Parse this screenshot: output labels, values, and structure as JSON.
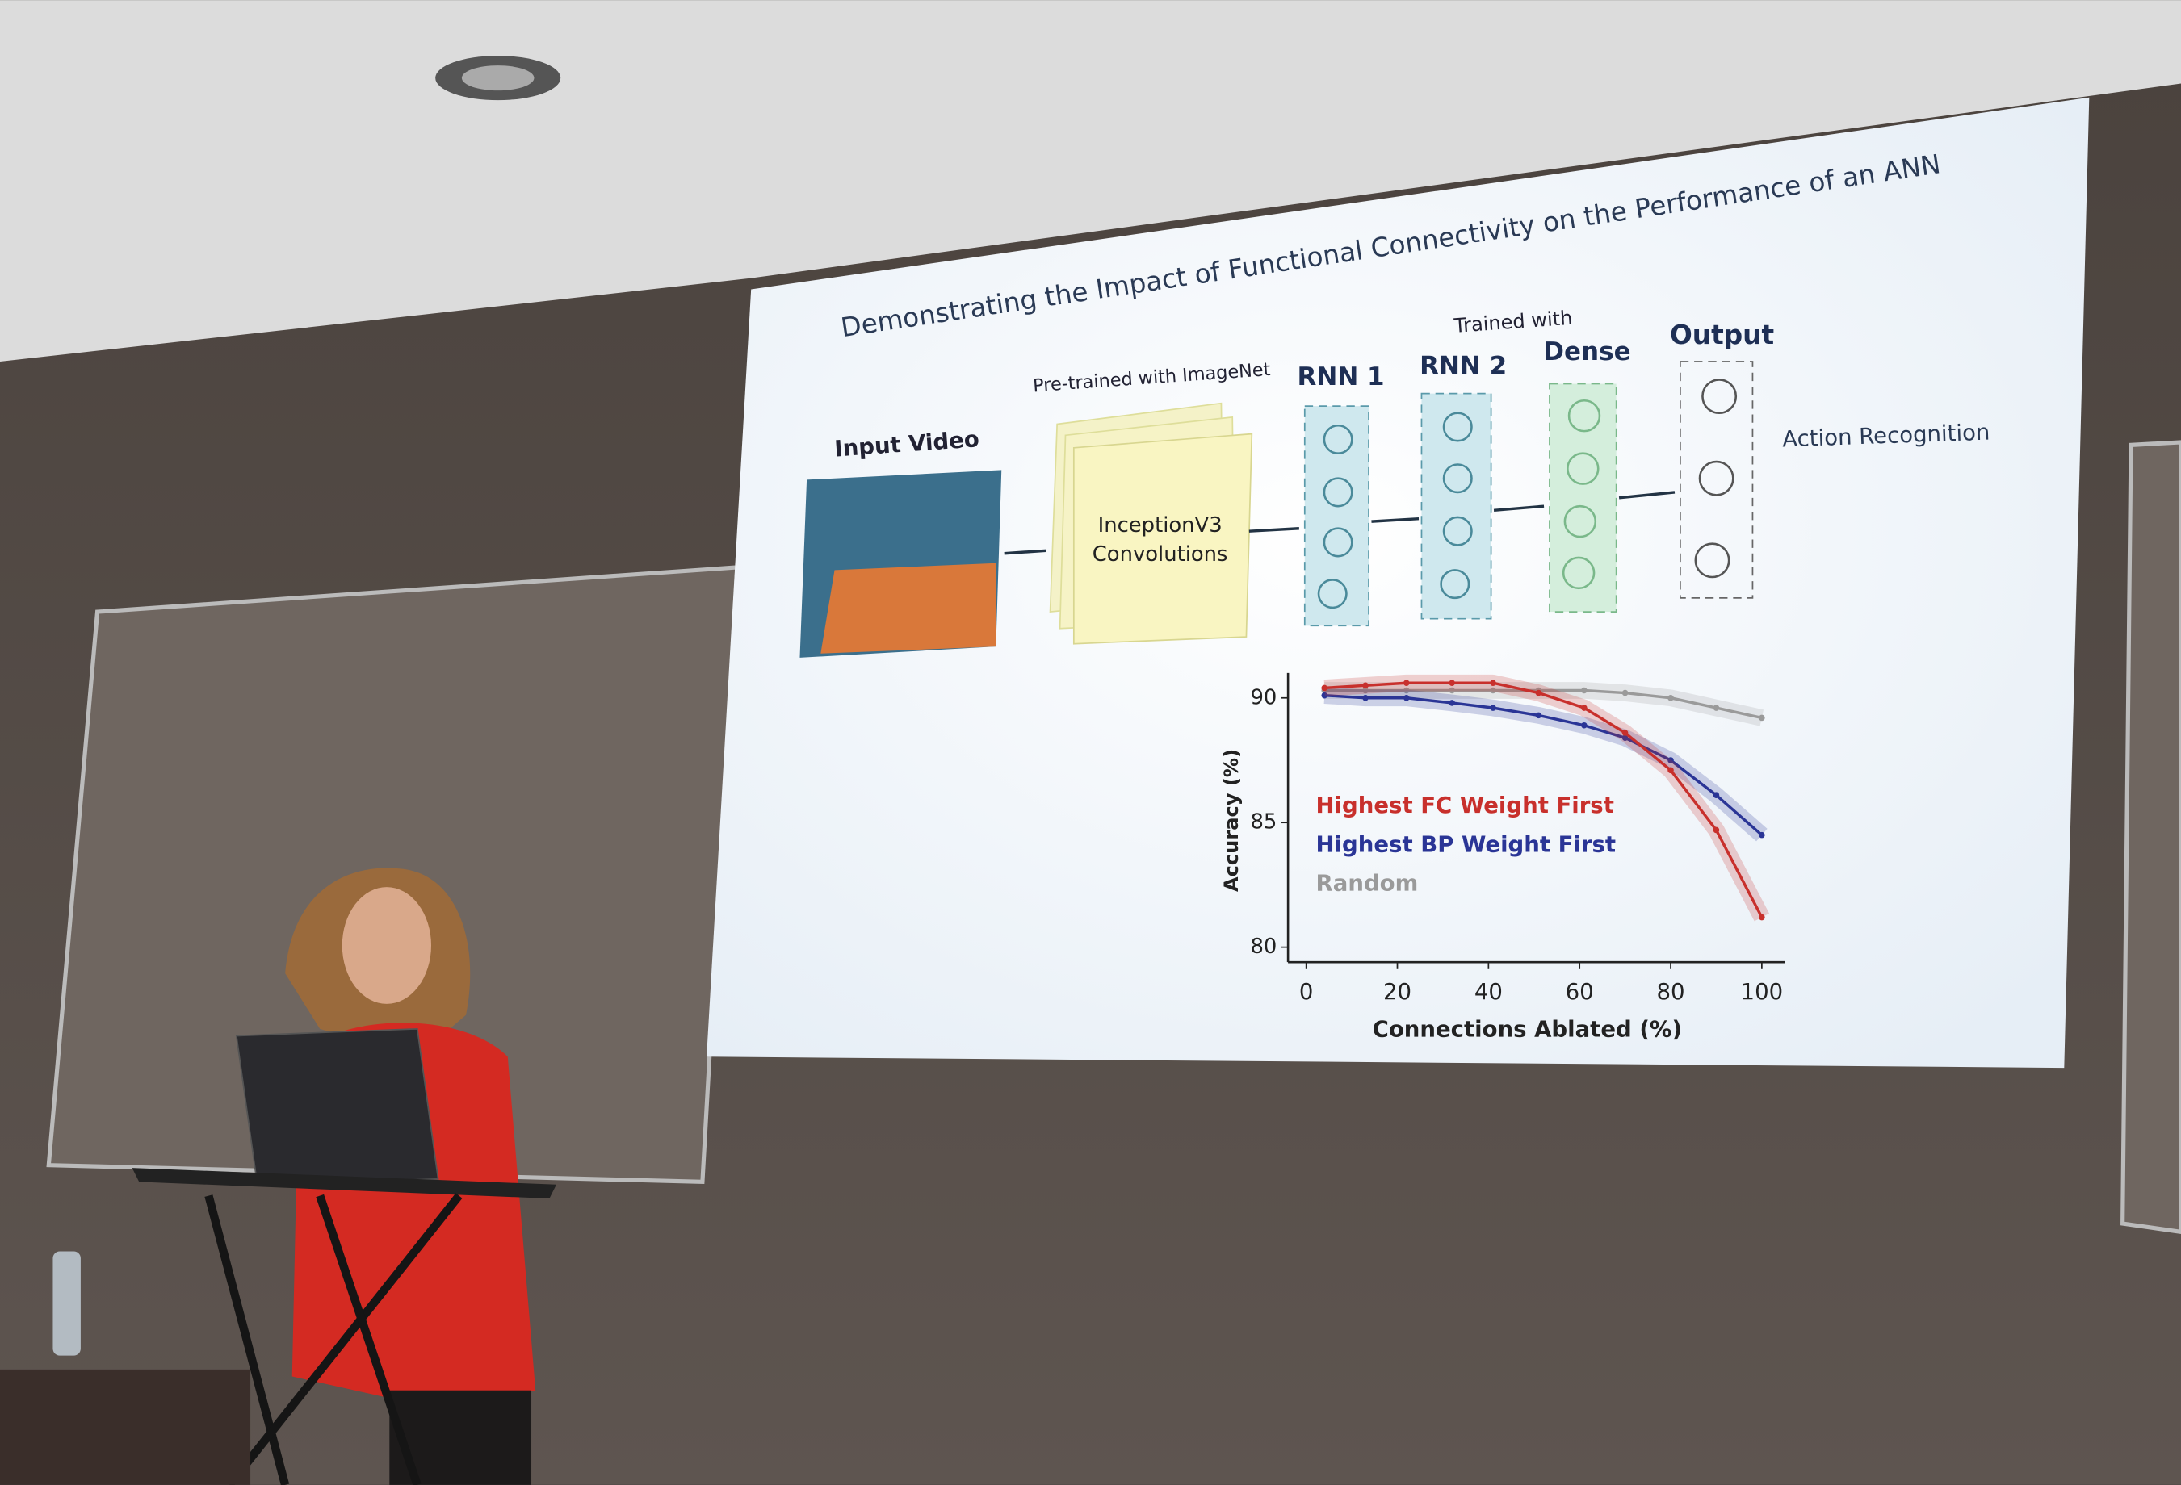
{
  "slide": {
    "title": "Demonstrating the Impact of Functional Connectivity on the Performance of an ANN",
    "diagram": {
      "input_label": "Input Video",
      "pretrained_label": "Pre-trained with ImageNet",
      "conv_line1": "InceptionV3",
      "conv_line2": "Convolutions",
      "trained_label": "Trained with",
      "rnn1": "RNN 1",
      "rnn2": "RNN 2",
      "dense": "Dense",
      "output": "Output",
      "result": "Action Recognition"
    }
  },
  "chart_data": {
    "type": "line",
    "xlabel": "Connections Ablated (%)",
    "ylabel": "Accuracy (%)",
    "x": [
      4,
      13,
      22,
      32,
      41,
      51,
      61,
      70,
      80,
      90,
      100
    ],
    "series": [
      {
        "name": "Highest FC Weight First",
        "color": "#c8302c",
        "values": [
          90.4,
          90.5,
          90.6,
          90.6,
          90.6,
          90.2,
          89.6,
          88.6,
          87.1,
          84.7,
          81.2
        ]
      },
      {
        "name": "Highest BP Weight First",
        "color": "#2a3596",
        "values": [
          90.1,
          90.0,
          90.0,
          89.8,
          89.6,
          89.3,
          88.9,
          88.4,
          87.5,
          86.1,
          84.5
        ]
      },
      {
        "name": "Random",
        "color": "#9a9a9a",
        "values": [
          90.3,
          90.3,
          90.3,
          90.3,
          90.3,
          90.3,
          90.3,
          90.2,
          90.0,
          89.6,
          89.2
        ]
      }
    ],
    "xlim": [
      -4,
      105
    ],
    "ylim": [
      79.4,
      91
    ],
    "xticks": [
      0,
      20,
      40,
      60,
      80,
      100
    ],
    "yticks": [
      80,
      85,
      90
    ]
  }
}
